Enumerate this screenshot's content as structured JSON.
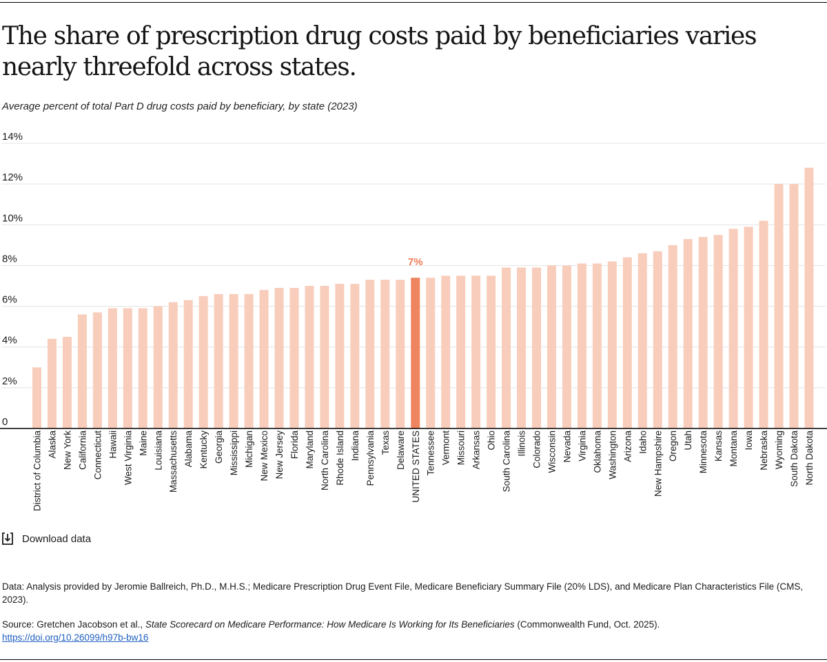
{
  "title": "The share of prescription drug costs paid by beneficiaries varies nearly threefold across states.",
  "subtitle": "Average percent of total Part D drug costs paid by beneficiary, by state (2023)",
  "download_label": "Download data",
  "note_data": "Data: Analysis provided by Jeromie Ballreich, Ph.D., M.H.S.; Medicare Prescription Drug Event File, Medicare Beneficiary Summary File (20% LDS), and Medicare Plan Characteristics File (CMS, 2023).",
  "source": {
    "prefix": "Source: Gretchen Jacobson et al., ",
    "italic": "State Scorecard on Medicare Performance: How Medicare Is Working for Its Beneficiaries",
    "suffix": " (Commonwealth Fund, Oct. 2025).",
    "link": "https://doi.org/10.26099/h97b-bw16"
  },
  "colors": {
    "bar": "#f8cdbb",
    "highlight": "#ef8460",
    "highlight_label": "#ef7a55",
    "grid": "#e3e3e3",
    "axis": "#000000",
    "text": "#1a1a1a"
  },
  "chart_data": {
    "type": "bar",
    "title": "Average percent of total Part D drug costs paid by beneficiary, by state (2023)",
    "xlabel": "",
    "ylabel": "",
    "ylim": [
      0,
      14
    ],
    "yticks": [
      0,
      2,
      4,
      6,
      8,
      10,
      12,
      14
    ],
    "ytick_labels": [
      "0",
      "2%",
      "4%",
      "6%",
      "8%",
      "10%",
      "12%",
      "14%"
    ],
    "highlight_category": "UNITED STATES",
    "highlight_label": "7%",
    "categories": [
      "District of Columbia",
      "Alaska",
      "New York",
      "California",
      "Connecticut",
      "Hawaii",
      "West Virginia",
      "Maine",
      "Louisiana",
      "Massachusetts",
      "Alabama",
      "Kentucky",
      "Georgia",
      "Mississippi",
      "Michigan",
      "New Mexico",
      "New Jersey",
      "Florida",
      "Maryland",
      "North Carolina",
      "Rhode Island",
      "Indiana",
      "Pennsylvania",
      "Texas",
      "Delaware",
      "UNITED STATES",
      "Tennessee",
      "Vermont",
      "Missouri",
      "Arkansas",
      "Ohio",
      "South Carolina",
      "Illinois",
      "Colorado",
      "Wisconsin",
      "Nevada",
      "Virginia",
      "Oklahoma",
      "Washington",
      "Arizona",
      "Idaho",
      "New Hampshire",
      "Oregon",
      "Utah",
      "Minnesota",
      "Kansas",
      "Montana",
      "Iowa",
      "Nebraska",
      "Wyoming",
      "South Dakota",
      "North Dakota"
    ],
    "values": [
      3.0,
      4.4,
      4.5,
      5.6,
      5.7,
      5.9,
      5.9,
      5.9,
      6.0,
      6.2,
      6.3,
      6.5,
      6.6,
      6.6,
      6.6,
      6.8,
      6.9,
      6.9,
      7.0,
      7.0,
      7.1,
      7.1,
      7.3,
      7.3,
      7.3,
      7.4,
      7.4,
      7.5,
      7.5,
      7.5,
      7.5,
      7.9,
      7.9,
      7.9,
      8.0,
      8.0,
      8.1,
      8.1,
      8.2,
      8.4,
      8.6,
      8.7,
      9.0,
      9.3,
      9.4,
      9.5,
      9.8,
      9.9,
      10.2,
      12.0,
      12.0,
      12.8
    ]
  }
}
